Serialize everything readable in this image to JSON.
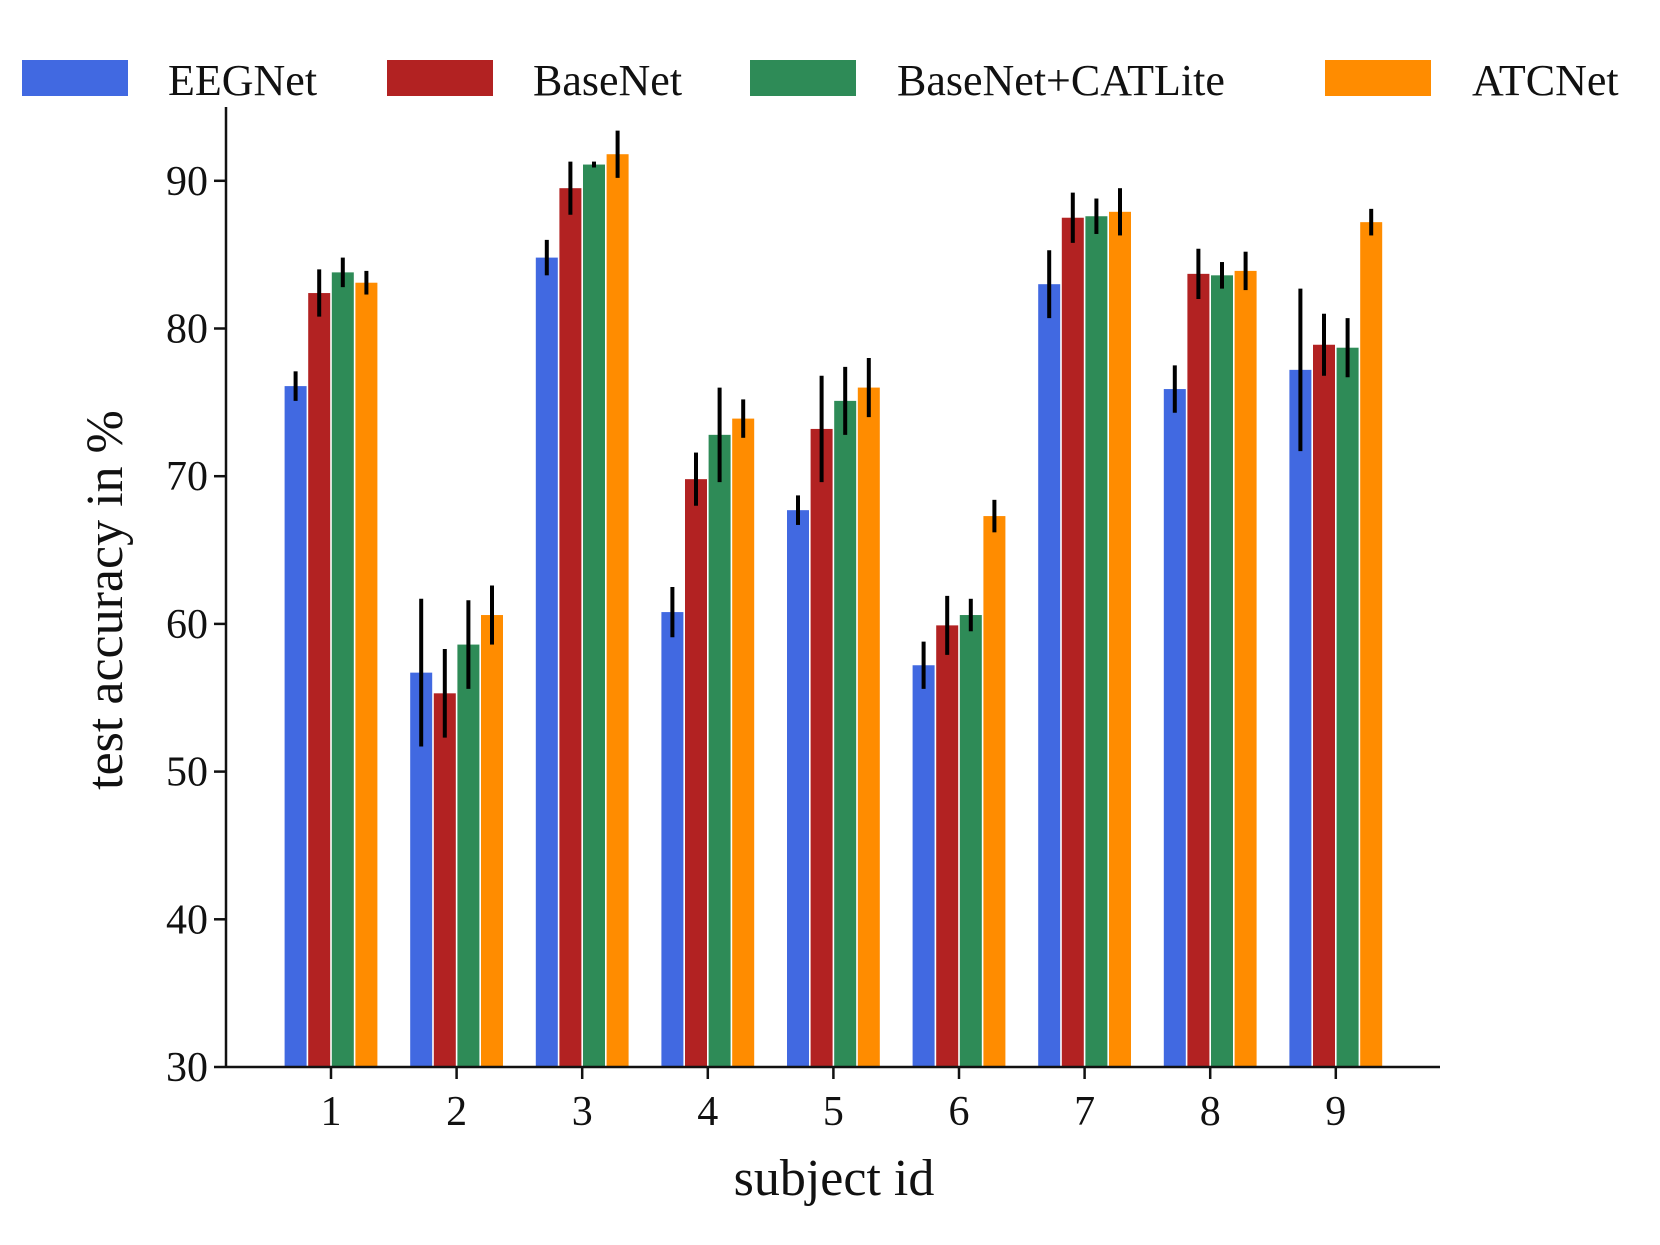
{
  "chart_data": {
    "type": "bar",
    "title": "",
    "xlabel": "subject id",
    "ylabel": "test accuracy in %",
    "ylim": [
      30,
      95
    ],
    "yticks": [
      30,
      40,
      50,
      60,
      70,
      80,
      90
    ],
    "grid": false,
    "legend_position": "top",
    "categories": [
      "1",
      "2",
      "3",
      "4",
      "5",
      "6",
      "7",
      "8",
      "9"
    ],
    "series": [
      {
        "name": "EEGNet",
        "color": "#4169e1",
        "values": [
          76.1,
          56.7,
          84.8,
          60.8,
          67.7,
          57.2,
          83.0,
          75.9,
          77.2
        ],
        "errors": [
          1.0,
          5.0,
          1.2,
          1.7,
          1.0,
          1.6,
          2.3,
          1.6,
          5.5
        ]
      },
      {
        "name": "BaseNet",
        "color": "#b22222",
        "values": [
          82.4,
          55.3,
          89.5,
          69.8,
          73.2,
          59.9,
          87.5,
          83.7,
          78.9
        ],
        "errors": [
          1.6,
          3.0,
          1.8,
          1.8,
          3.6,
          2.0,
          1.7,
          1.7,
          2.1
        ]
      },
      {
        "name": "BaseNet+CATLite",
        "color": "#2e8b57",
        "values": [
          83.8,
          58.6,
          91.1,
          72.8,
          75.1,
          60.6,
          87.6,
          83.6,
          78.7
        ],
        "errors": [
          1.0,
          3.0,
          0.2,
          3.2,
          2.3,
          1.1,
          1.2,
          0.9,
          2.0
        ]
      },
      {
        "name": "ATCNet",
        "color": "#ff8c00",
        "values": [
          83.1,
          60.6,
          91.8,
          73.9,
          76.0,
          67.3,
          87.9,
          83.9,
          87.2
        ],
        "errors": [
          0.8,
          2.0,
          1.6,
          1.3,
          2.0,
          1.1,
          1.6,
          1.3,
          0.9
        ]
      }
    ]
  }
}
